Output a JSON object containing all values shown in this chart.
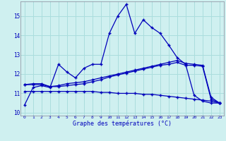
{
  "bg_color": "#cff0f0",
  "line_color": "#0000bb",
  "grid_color": "#aadddd",
  "xlabel": "Graphe des températures (°C)",
  "xlabel_color": "#0000bb",
  "ylim": [
    9.85,
    15.75
  ],
  "xlim": [
    -0.5,
    23.5
  ],
  "yticks": [
    10,
    11,
    12,
    13,
    14,
    15
  ],
  "xticks": [
    0,
    1,
    2,
    3,
    4,
    5,
    6,
    7,
    8,
    9,
    10,
    11,
    12,
    13,
    14,
    15,
    16,
    17,
    18,
    19,
    20,
    21,
    22,
    23
  ],
  "line1_x": [
    0,
    1,
    2,
    3,
    4,
    5,
    6,
    7,
    8,
    9,
    10,
    11,
    12,
    13,
    14,
    15,
    16,
    17,
    18,
    19,
    20,
    21,
    22,
    23
  ],
  "line1_y": [
    10.4,
    11.3,
    11.4,
    11.3,
    12.5,
    12.1,
    11.8,
    12.3,
    12.5,
    12.5,
    14.1,
    15.0,
    15.6,
    14.1,
    14.8,
    14.4,
    14.1,
    13.5,
    12.85,
    12.5,
    10.9,
    10.6,
    10.5,
    10.5
  ],
  "line2_x": [
    0,
    1,
    2,
    3,
    4,
    5,
    6,
    7,
    8,
    9,
    10,
    11,
    12,
    13,
    14,
    15,
    16,
    17,
    18,
    19,
    20,
    21,
    22,
    23
  ],
  "line2_y": [
    11.45,
    11.5,
    11.5,
    11.35,
    11.4,
    11.5,
    11.55,
    11.6,
    11.7,
    11.8,
    11.9,
    12.0,
    12.1,
    12.2,
    12.3,
    12.4,
    12.5,
    12.6,
    12.7,
    12.55,
    12.5,
    12.45,
    10.8,
    10.5
  ],
  "line3_x": [
    0,
    1,
    2,
    3,
    4,
    5,
    6,
    7,
    8,
    9,
    10,
    11,
    12,
    13,
    14,
    15,
    16,
    17,
    18,
    19,
    20,
    21,
    22,
    23
  ],
  "line3_y": [
    11.45,
    11.45,
    11.45,
    11.35,
    11.35,
    11.4,
    11.45,
    11.5,
    11.6,
    11.7,
    11.85,
    11.95,
    12.05,
    12.15,
    12.25,
    12.35,
    12.45,
    12.5,
    12.6,
    12.45,
    12.45,
    12.4,
    10.7,
    10.5
  ],
  "line4_x": [
    0,
    1,
    2,
    3,
    4,
    5,
    6,
    7,
    8,
    9,
    10,
    11,
    12,
    13,
    14,
    15,
    16,
    17,
    18,
    19,
    20,
    21,
    22,
    23
  ],
  "line4_y": [
    11.1,
    11.1,
    11.1,
    11.1,
    11.1,
    11.1,
    11.1,
    11.1,
    11.1,
    11.05,
    11.05,
    11.0,
    11.0,
    11.0,
    10.95,
    10.95,
    10.9,
    10.85,
    10.8,
    10.75,
    10.7,
    10.65,
    10.6,
    10.5
  ]
}
